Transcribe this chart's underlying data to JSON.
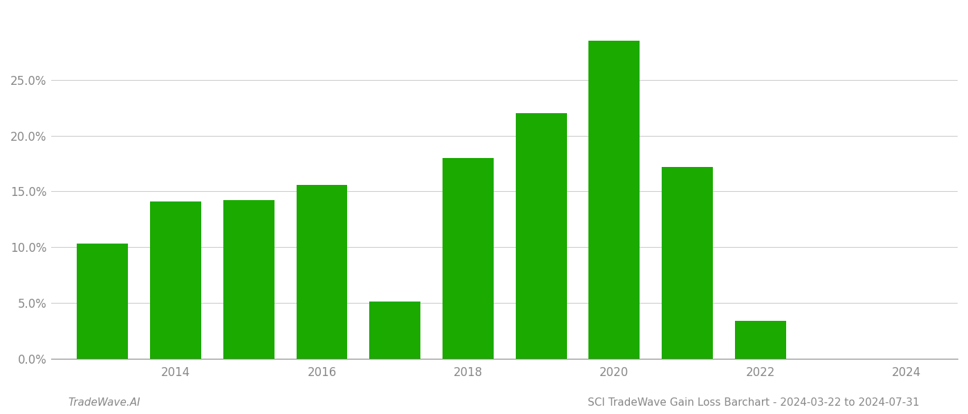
{
  "years": [
    2013,
    2014,
    2015,
    2016,
    2017,
    2018,
    2019,
    2020,
    2021,
    2022,
    2023
  ],
  "values": [
    0.103,
    0.141,
    0.142,
    0.156,
    0.051,
    0.18,
    0.22,
    0.285,
    0.172,
    0.034,
    0.0
  ],
  "bar_color": "#1aaa00",
  "background_color": "#ffffff",
  "grid_color": "#cccccc",
  "axis_label_color": "#888888",
  "footer_left": "TradeWave.AI",
  "footer_right": "SCI TradeWave Gain Loss Barchart - 2024-03-22 to 2024-07-31",
  "ytick_labels": [
    "0.0%",
    "5.0%",
    "10.0%",
    "15.0%",
    "20.0%",
    "25.0%"
  ],
  "ytick_values": [
    0.0,
    0.05,
    0.1,
    0.15,
    0.2,
    0.25
  ],
  "ylim": [
    0,
    0.305
  ],
  "xlim": [
    2012.3,
    2024.7
  ],
  "xtick_years": [
    2014,
    2016,
    2018,
    2020,
    2022,
    2024
  ],
  "bar_width": 0.7,
  "tick_fontsize": 12,
  "footer_fontsize": 11
}
